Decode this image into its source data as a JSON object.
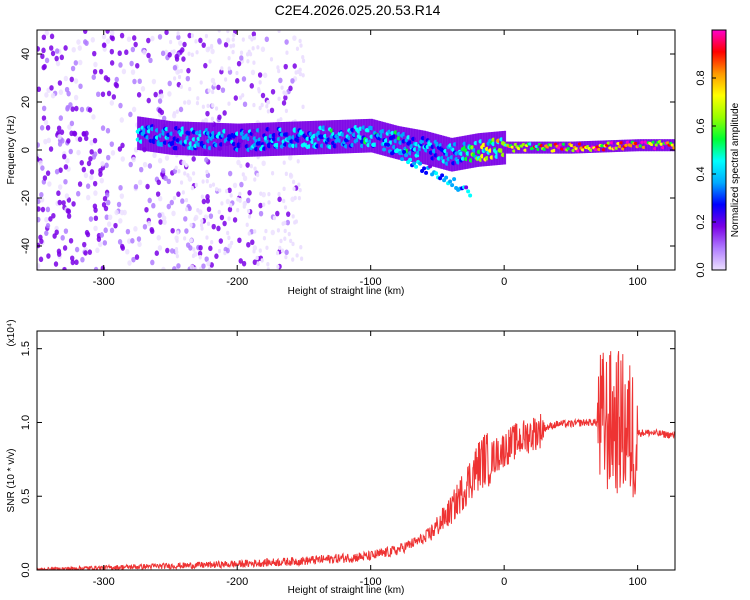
{
  "title": "C2E4.2026.025.20.53.R14",
  "colors": {
    "snr_line": "#ee3333",
    "colorbar": [
      "#ece0ff",
      "#b07cff",
      "#7a00e6",
      "#0000ff",
      "#00aaff",
      "#00ffff",
      "#00ff33",
      "#99ff00",
      "#ffff00",
      "#ff9900",
      "#ff0000",
      "#ff00cc"
    ]
  },
  "chart_data": [
    {
      "type": "heatmap",
      "title": "C2E4.2026.025.20.53.R14",
      "xlabel": "Height of straight line (km)",
      "ylabel": "Frequency (Hz)",
      "xlim": [
        -350,
        128
      ],
      "ylim": [
        -50,
        50
      ],
      "x_ticks": [
        -300,
        -200,
        -100,
        0,
        100
      ],
      "y_ticks": [
        -40,
        -20,
        0,
        20,
        40
      ],
      "colorbar": {
        "label": "Normalized spectral amplitude",
        "range": [
          0,
          1
        ],
        "ticks": [
          0.0,
          0.2,
          0.4,
          0.6,
          0.8
        ]
      },
      "description_points": {
        "band_x": [
          -275,
          -250,
          -200,
          -150,
          -100,
          -80,
          -60,
          -40,
          -20,
          0,
          50,
          100,
          128
        ],
        "band_center_hz": [
          7,
          5,
          4,
          5,
          6,
          3,
          1,
          -2,
          0,
          1,
          1,
          2,
          2
        ],
        "band_peak_amplitude": [
          0.45,
          0.4,
          0.35,
          0.4,
          0.45,
          0.45,
          0.4,
          0.35,
          0.6,
          0.7,
          0.9,
          0.85,
          0.85
        ]
      }
    },
    {
      "type": "line",
      "xlabel": "Height of straight line (km)",
      "ylabel": "SNR (10 * v/v)",
      "y_multiplier": "(x10⁴)",
      "xlim": [
        -350,
        128
      ],
      "ylim": [
        0,
        1.62
      ],
      "x_ticks": [
        -300,
        -200,
        -100,
        0,
        100
      ],
      "y_ticks": [
        0.0,
        0.5,
        1.0,
        1.5
      ],
      "series": [
        {
          "x": [
            -350,
            -300,
            -250,
            -200,
            -150,
            -100,
            -80,
            -60,
            -40,
            -30,
            -20,
            -15,
            -10,
            0,
            10,
            20,
            30,
            40,
            50,
            60,
            70,
            75,
            80,
            85,
            90,
            95,
            100,
            110,
            120,
            128
          ],
          "y": [
            0.0,
            0.01,
            0.02,
            0.03,
            0.05,
            0.08,
            0.12,
            0.2,
            0.4,
            0.55,
            0.7,
            0.75,
            0.75,
            0.82,
            0.88,
            0.92,
            0.96,
            0.99,
            0.99,
            1.0,
            1.0,
            1.0,
            1.0,
            1.0,
            0.98,
            0.92,
            0.93,
            0.93,
            0.92,
            0.91
          ]
        }
      ]
    }
  ]
}
